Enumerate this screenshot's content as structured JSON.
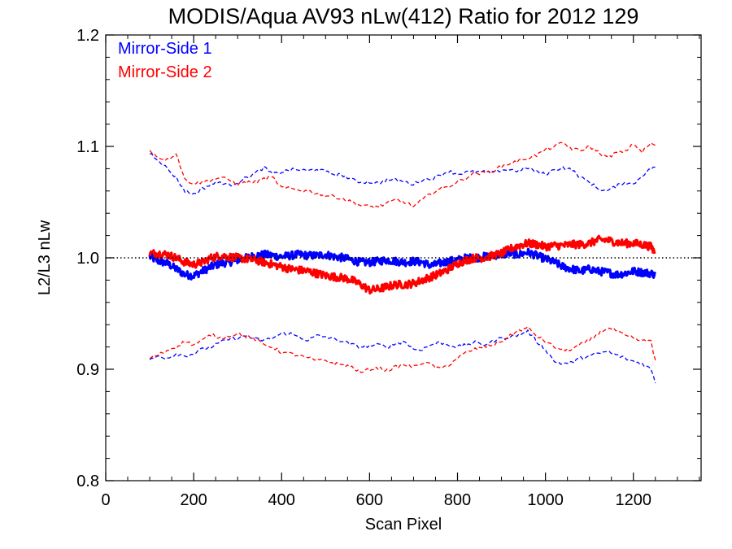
{
  "chart_data": {
    "type": "line",
    "title": "MODIS/Aqua AV93 nLw(412) Ratio for 2012 129",
    "xlabel": "Scan Pixel",
    "ylabel": "L2/L3 nLw",
    "xlim": [
      0,
      1354
    ],
    "ylim": [
      0.8,
      1.2
    ],
    "xticks": [
      0,
      200,
      400,
      600,
      800,
      1000,
      1200
    ],
    "xtick_labels": [
      "0",
      "200",
      "400",
      "600",
      "800",
      "1000",
      "1200"
    ],
    "yticks": [
      0.8,
      0.9,
      1.0,
      1.1,
      1.2
    ],
    "ytick_labels": [
      "0.8",
      "0.9",
      "1.0",
      "1.1",
      "1.2"
    ],
    "reference_line": 1.0,
    "grid": false,
    "legend_position": "top-left",
    "colors": {
      "mirror_side_1": "#0000ff",
      "mirror_side_2": "#ff0000"
    },
    "series": [
      {
        "name": "Mirror-Side 1",
        "role": "ratio",
        "color": "#0000ff",
        "x": [
          100,
          120,
          140,
          160,
          180,
          200,
          220,
          240,
          260,
          280,
          300,
          320,
          340,
          360,
          380,
          400,
          420,
          440,
          460,
          480,
          500,
          520,
          540,
          560,
          580,
          600,
          620,
          640,
          660,
          680,
          700,
          720,
          740,
          760,
          780,
          800,
          820,
          840,
          860,
          880,
          900,
          920,
          940,
          960,
          980,
          1000,
          1020,
          1040,
          1060,
          1080,
          1100,
          1120,
          1140,
          1160,
          1180,
          1200,
          1220,
          1240,
          1250
        ],
        "y": [
          1.001,
          0.997,
          0.995,
          0.99,
          0.985,
          0.984,
          0.988,
          0.992,
          0.995,
          0.996,
          0.998,
          1.0,
          1.002,
          1.003,
          1.002,
          1.001,
          1.002,
          1.003,
          1.002,
          1.002,
          1.003,
          1.001,
          1.0,
          0.998,
          0.996,
          0.996,
          0.997,
          0.998,
          0.997,
          0.996,
          0.997,
          0.996,
          0.993,
          0.995,
          0.997,
          0.998,
          1.0,
          1.0,
          1.001,
          1.002,
          1.003,
          1.004,
          1.003,
          1.005,
          1.002,
          0.999,
          0.996,
          0.992,
          0.99,
          0.988,
          0.99,
          0.988,
          0.987,
          0.985,
          0.986,
          0.988,
          0.987,
          0.986,
          0.985
        ]
      },
      {
        "name": "Mirror-Side 2",
        "role": "ratio",
        "color": "#ff0000",
        "x": [
          100,
          120,
          140,
          160,
          180,
          200,
          220,
          240,
          260,
          280,
          300,
          320,
          340,
          360,
          380,
          400,
          420,
          440,
          460,
          480,
          500,
          520,
          540,
          560,
          580,
          600,
          620,
          640,
          660,
          680,
          700,
          720,
          740,
          760,
          780,
          800,
          820,
          840,
          860,
          880,
          900,
          920,
          940,
          960,
          980,
          1000,
          1020,
          1040,
          1060,
          1080,
          1100,
          1120,
          1140,
          1160,
          1180,
          1200,
          1220,
          1240,
          1250
        ],
        "y": [
          1.004,
          1.004,
          1.003,
          1.0,
          0.996,
          0.994,
          0.996,
          1.0,
          1.002,
          1.001,
          1.0,
          0.999,
          0.998,
          0.996,
          0.994,
          0.992,
          0.99,
          0.989,
          0.988,
          0.986,
          0.984,
          0.983,
          0.982,
          0.98,
          0.976,
          0.971,
          0.972,
          0.974,
          0.976,
          0.976,
          0.977,
          0.98,
          0.983,
          0.986,
          0.99,
          0.995,
          0.998,
          1.0,
          1.0,
          1.002,
          1.004,
          1.008,
          1.011,
          1.013,
          1.012,
          1.01,
          1.011,
          1.011,
          1.012,
          1.012,
          1.013,
          1.016,
          1.016,
          1.014,
          1.013,
          1.013,
          1.012,
          1.01,
          1.004
        ]
      },
      {
        "name": "Mirror-Side 1",
        "role": "upper",
        "color": "#0000ff",
        "x": [
          100,
          120,
          140,
          160,
          180,
          200,
          220,
          240,
          260,
          280,
          300,
          320,
          340,
          360,
          380,
          400,
          420,
          440,
          460,
          480,
          500,
          520,
          540,
          560,
          580,
          600,
          620,
          640,
          660,
          680,
          700,
          720,
          740,
          760,
          780,
          800,
          820,
          840,
          860,
          880,
          900,
          920,
          940,
          960,
          980,
          1000,
          1020,
          1040,
          1060,
          1080,
          1100,
          1120,
          1140,
          1160,
          1180,
          1200,
          1220,
          1240,
          1250
        ],
        "y": [
          1.094,
          1.088,
          1.08,
          1.072,
          1.06,
          1.057,
          1.062,
          1.066,
          1.068,
          1.065,
          1.068,
          1.072,
          1.076,
          1.081,
          1.075,
          1.077,
          1.079,
          1.079,
          1.078,
          1.08,
          1.077,
          1.075,
          1.074,
          1.07,
          1.068,
          1.068,
          1.067,
          1.07,
          1.07,
          1.068,
          1.066,
          1.07,
          1.071,
          1.074,
          1.078,
          1.075,
          1.077,
          1.077,
          1.077,
          1.076,
          1.079,
          1.079,
          1.078,
          1.081,
          1.077,
          1.075,
          1.079,
          1.081,
          1.079,
          1.072,
          1.068,
          1.062,
          1.06,
          1.064,
          1.068,
          1.066,
          1.074,
          1.08,
          1.082
        ]
      },
      {
        "name": "Mirror-Side 1",
        "role": "lower",
        "color": "#0000ff",
        "x": [
          100,
          120,
          140,
          160,
          180,
          200,
          220,
          240,
          260,
          280,
          300,
          320,
          340,
          360,
          380,
          400,
          420,
          440,
          460,
          480,
          500,
          520,
          540,
          560,
          580,
          600,
          620,
          640,
          660,
          680,
          700,
          720,
          740,
          760,
          780,
          800,
          820,
          840,
          860,
          880,
          900,
          920,
          940,
          960,
          980,
          1000,
          1020,
          1040,
          1060,
          1080,
          1100,
          1120,
          1140,
          1160,
          1180,
          1200,
          1220,
          1240,
          1250
        ],
        "y": [
          0.908,
          0.912,
          0.91,
          0.914,
          0.912,
          0.914,
          0.918,
          0.92,
          0.924,
          0.927,
          0.928,
          0.93,
          0.927,
          0.926,
          0.928,
          0.932,
          0.932,
          0.929,
          0.926,
          0.93,
          0.929,
          0.927,
          0.925,
          0.922,
          0.92,
          0.921,
          0.922,
          0.92,
          0.923,
          0.925,
          0.918,
          0.918,
          0.922,
          0.924,
          0.922,
          0.92,
          0.922,
          0.924,
          0.922,
          0.925,
          0.928,
          0.929,
          0.931,
          0.934,
          0.925,
          0.918,
          0.907,
          0.905,
          0.906,
          0.91,
          0.912,
          0.914,
          0.916,
          0.913,
          0.91,
          0.907,
          0.905,
          0.9,
          0.888
        ]
      },
      {
        "name": "Mirror-Side 2",
        "role": "upper",
        "color": "#ff0000",
        "x": [
          100,
          120,
          140,
          160,
          180,
          200,
          220,
          240,
          260,
          280,
          300,
          320,
          340,
          360,
          380,
          400,
          420,
          440,
          460,
          480,
          500,
          520,
          540,
          560,
          580,
          600,
          620,
          640,
          660,
          680,
          700,
          720,
          740,
          760,
          780,
          800,
          820,
          840,
          860,
          880,
          900,
          920,
          940,
          960,
          980,
          1000,
          1020,
          1040,
          1060,
          1080,
          1100,
          1120,
          1140,
          1160,
          1180,
          1200,
          1220,
          1240,
          1250
        ],
        "y": [
          1.097,
          1.09,
          1.088,
          1.094,
          1.07,
          1.067,
          1.068,
          1.07,
          1.072,
          1.07,
          1.066,
          1.068,
          1.068,
          1.071,
          1.072,
          1.063,
          1.062,
          1.061,
          1.06,
          1.058,
          1.056,
          1.055,
          1.053,
          1.05,
          1.047,
          1.046,
          1.046,
          1.049,
          1.052,
          1.05,
          1.046,
          1.052,
          1.058,
          1.062,
          1.064,
          1.068,
          1.072,
          1.076,
          1.076,
          1.078,
          1.082,
          1.085,
          1.087,
          1.09,
          1.092,
          1.097,
          1.1,
          1.103,
          1.098,
          1.096,
          1.1,
          1.095,
          1.09,
          1.094,
          1.095,
          1.102,
          1.095,
          1.103,
          1.1
        ]
      },
      {
        "name": "Mirror-Side 2",
        "role": "lower",
        "color": "#ff0000",
        "x": [
          100,
          120,
          140,
          160,
          180,
          200,
          220,
          240,
          260,
          280,
          300,
          320,
          340,
          360,
          380,
          400,
          420,
          440,
          460,
          480,
          500,
          520,
          540,
          560,
          580,
          600,
          620,
          640,
          660,
          680,
          700,
          720,
          740,
          760,
          780,
          800,
          820,
          840,
          860,
          880,
          900,
          920,
          940,
          960,
          980,
          1000,
          1020,
          1040,
          1060,
          1080,
          1100,
          1120,
          1140,
          1160,
          1180,
          1200,
          1220,
          1240,
          1250
        ],
        "y": [
          0.91,
          0.913,
          0.917,
          0.92,
          0.925,
          0.922,
          0.926,
          0.931,
          0.928,
          0.93,
          0.932,
          0.929,
          0.927,
          0.922,
          0.92,
          0.915,
          0.914,
          0.912,
          0.91,
          0.908,
          0.908,
          0.905,
          0.904,
          0.902,
          0.897,
          0.9,
          0.901,
          0.899,
          0.902,
          0.904,
          0.902,
          0.906,
          0.904,
          0.9,
          0.904,
          0.91,
          0.915,
          0.918,
          0.92,
          0.922,
          0.925,
          0.93,
          0.935,
          0.937,
          0.93,
          0.925,
          0.92,
          0.917,
          0.918,
          0.922,
          0.926,
          0.932,
          0.937,
          0.935,
          0.93,
          0.928,
          0.925,
          0.926,
          0.907
        ]
      }
    ]
  }
}
